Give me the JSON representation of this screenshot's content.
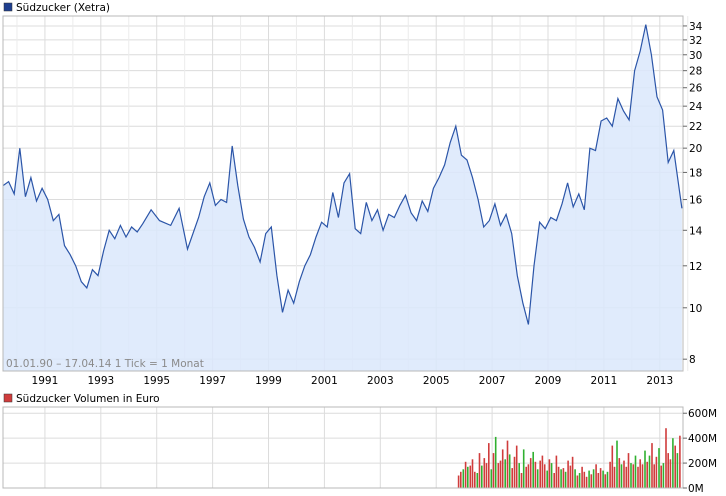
{
  "chart_data": [
    {
      "type": "area",
      "title": "Südzucker (Xetra)",
      "legend_color": "#1f3f8f",
      "line_color": "#2b55a8",
      "fill_color": "#dbe8fb",
      "scale": "log",
      "footer": "01.01.90 – 17.04.14   1 Tick = 1 Monat",
      "y_ticks": [
        "8",
        "10",
        "12",
        "14",
        "16",
        "18",
        "20",
        "22",
        "24",
        "26",
        "28",
        "30",
        "32",
        "34"
      ],
      "x_ticks": [
        "1991",
        "1993",
        "1995",
        "1997",
        "1999",
        "2001",
        "2003",
        "2005",
        "2007",
        "2009",
        "2011",
        "2013"
      ],
      "grid": true,
      "x": [
        1990.0,
        1990.2,
        1990.4,
        1990.6,
        1990.8,
        1991.0,
        1991.2,
        1991.4,
        1991.6,
        1991.8,
        1992.0,
        1992.2,
        1992.4,
        1992.6,
        1992.8,
        1993.0,
        1993.2,
        1993.4,
        1993.6,
        1993.8,
        1994.0,
        1994.2,
        1994.4,
        1994.6,
        1994.8,
        1995.0,
        1995.3,
        1995.6,
        1996.0,
        1996.3,
        1996.6,
        1997.0,
        1997.2,
        1997.4,
        1997.6,
        1997.8,
        1998.0,
        1998.2,
        1998.4,
        1998.6,
        1998.8,
        1999.0,
        1999.2,
        1999.4,
        1999.6,
        1999.8,
        2000.0,
        2000.2,
        2000.4,
        2000.6,
        2000.8,
        2001.0,
        2001.2,
        2001.4,
        2001.6,
        2001.8,
        2002.0,
        2002.2,
        2002.4,
        2002.6,
        2002.8,
        2003.0,
        2003.2,
        2003.4,
        2003.6,
        2003.8,
        2004.0,
        2004.2,
        2004.4,
        2004.6,
        2004.8,
        2005.0,
        2005.2,
        2005.4,
        2005.6,
        2005.8,
        2006.0,
        2006.2,
        2006.4,
        2006.6,
        2006.8,
        2007.0,
        2007.2,
        2007.4,
        2007.6,
        2007.8,
        2008.0,
        2008.2,
        2008.4,
        2008.6,
        2008.8,
        2009.0,
        2009.2,
        2009.4,
        2009.6,
        2009.8,
        2010.0,
        2010.2,
        2010.4,
        2010.6,
        2010.8,
        2011.0,
        2011.2,
        2011.4,
        2011.6,
        2011.8,
        2012.0,
        2012.2,
        2012.4,
        2012.6,
        2012.8,
        2013.0,
        2013.2,
        2013.4,
        2013.6,
        2013.8,
        2014.0,
        2014.29
      ],
      "y": [
        17.0,
        17.3,
        16.4,
        20.0,
        16.2,
        17.6,
        15.9,
        16.8,
        16.0,
        14.6,
        15.0,
        13.1,
        12.6,
        12.0,
        11.2,
        10.9,
        11.8,
        11.5,
        12.8,
        14.0,
        13.5,
        14.3,
        13.6,
        14.2,
        13.9,
        14.4,
        15.3,
        14.6,
        14.3,
        15.4,
        12.9,
        14.8,
        16.2,
        17.2,
        15.6,
        16.0,
        15.8,
        20.2,
        17.0,
        14.7,
        13.6,
        13.0,
        12.2,
        13.8,
        14.2,
        11.5,
        9.8,
        10.8,
        10.2,
        11.2,
        12.0,
        12.6,
        13.6,
        14.5,
        14.2,
        16.5,
        14.8,
        17.2,
        17.9,
        14.1,
        13.8,
        15.8,
        14.6,
        15.3,
        14.0,
        15.0,
        14.8,
        15.6,
        16.3,
        15.1,
        14.6,
        15.9,
        15.2,
        16.8,
        17.6,
        18.6,
        20.5,
        22.0,
        19.4,
        19.0,
        17.6,
        16.0,
        14.2,
        14.6,
        15.7,
        14.3,
        15.0,
        13.8,
        11.5,
        10.2,
        9.3,
        12.0,
        14.5,
        14.1,
        14.8,
        14.6,
        15.7,
        17.2,
        15.5,
        16.4,
        15.3,
        20.0,
        19.8,
        22.5,
        22.8,
        22.0,
        24.8,
        23.5,
        22.6,
        28.0,
        30.5,
        34.2,
        30.0,
        25.0,
        23.6,
        18.8,
        19.8,
        15.4
      ],
      "ylim": [
        7.6,
        35.5
      ],
      "xlim": [
        1990.0,
        2014.33
      ]
    },
    {
      "type": "bar",
      "title": "Südzucker Volumen in Euro",
      "legend_color": "#d03c3c",
      "y_ticks": [
        "0M",
        "200M",
        "400M",
        "600M"
      ],
      "ylim": [
        0,
        650
      ],
      "x": [
        2006.3,
        2006.38,
        2006.47,
        2006.55,
        2006.63,
        2006.72,
        2006.8,
        2006.88,
        2006.97,
        2007.05,
        2007.13,
        2007.22,
        2007.3,
        2007.38,
        2007.47,
        2007.55,
        2007.63,
        2007.72,
        2007.8,
        2007.88,
        2007.97,
        2008.05,
        2008.13,
        2008.22,
        2008.3,
        2008.38,
        2008.47,
        2008.55,
        2008.63,
        2008.72,
        2008.8,
        2008.88,
        2008.97,
        2009.05,
        2009.13,
        2009.22,
        2009.3,
        2009.38,
        2009.47,
        2009.55,
        2009.63,
        2009.72,
        2009.8,
        2009.88,
        2009.97,
        2010.05,
        2010.13,
        2010.22,
        2010.3,
        2010.38,
        2010.47,
        2010.55,
        2010.63,
        2010.72,
        2010.8,
        2010.88,
        2010.97,
        2011.05,
        2011.13,
        2011.22,
        2011.3,
        2011.38,
        2011.47,
        2011.55,
        2011.63,
        2011.72,
        2011.8,
        2011.88,
        2011.97,
        2012.05,
        2012.13,
        2012.22,
        2012.3,
        2012.38,
        2012.47,
        2012.55,
        2012.63,
        2012.72,
        2012.8,
        2012.88,
        2012.97,
        2013.05,
        2013.13,
        2013.22,
        2013.3,
        2013.38,
        2013.47,
        2013.55,
        2013.63,
        2013.72,
        2013.8,
        2013.88,
        2013.97,
        2014.05,
        2014.13,
        2014.22
      ],
      "values": [
        100,
        130,
        150,
        210,
        170,
        180,
        230,
        130,
        120,
        280,
        180,
        240,
        200,
        360,
        150,
        280,
        410,
        200,
        220,
        310,
        230,
        380,
        270,
        160,
        250,
        340,
        200,
        120,
        310,
        170,
        190,
        240,
        290,
        210,
        150,
        220,
        260,
        190,
        140,
        230,
        200,
        120,
        260,
        170,
        150,
        160,
        130,
        220,
        180,
        250,
        150,
        100,
        120,
        170,
        130,
        90,
        140,
        110,
        150,
        190,
        120,
        160,
        140,
        110,
        130,
        210,
        340,
        170,
        380,
        240,
        190,
        220,
        170,
        280,
        200,
        190,
        260,
        170,
        230,
        190,
        300,
        210,
        260,
        360,
        190,
        250,
        320,
        180,
        200,
        480,
        280,
        230,
        400,
        340,
        280,
        420
      ],
      "colors": [
        "#30b030",
        "#d03c3c"
      ]
    }
  ]
}
